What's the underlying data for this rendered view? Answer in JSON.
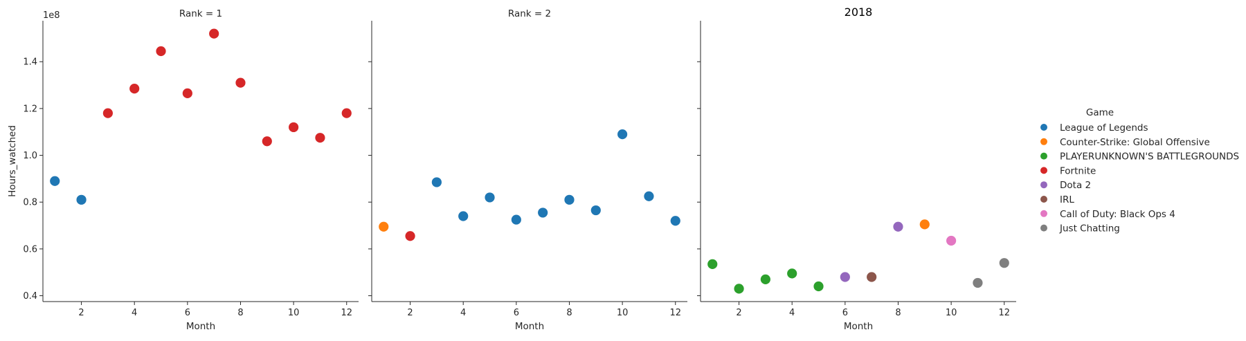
{
  "chart_data": {
    "type": "scatter",
    "title": "2018",
    "xlabel": "Month",
    "ylabel": "Hours_watched",
    "y_offset_label": "1e8",
    "xlim": [
      0.55,
      12.45
    ],
    "ylim": [
      0.375,
      1.575
    ],
    "xticks": [
      2,
      4,
      6,
      8,
      10,
      12
    ],
    "xtick_labels": [
      "2",
      "4",
      "6",
      "8",
      "10",
      "12"
    ],
    "yticks": [
      0.4,
      0.6,
      0.8,
      1.0,
      1.2,
      1.4
    ],
    "ytick_labels": [
      "0.4",
      "0.6",
      "0.8",
      "1.0",
      "1.2",
      "1.4"
    ],
    "legend": {
      "title": "Game",
      "placement": "right",
      "entries": [
        {
          "name": "League of Legends",
          "color": "#1f77b4"
        },
        {
          "name": "Counter-Strike: Global Offensive",
          "color": "#ff7f0e"
        },
        {
          "name": "PLAYERUNKNOWN'S BATTLEGROUNDS",
          "color": "#2ca02c"
        },
        {
          "name": "Fortnite",
          "color": "#d62728"
        },
        {
          "name": "Dota 2",
          "color": "#9467bd"
        },
        {
          "name": "IRL",
          "color": "#8c564b"
        },
        {
          "name": "Call of Duty: Black Ops 4",
          "color": "#e377c2"
        },
        {
          "name": "Just Chatting",
          "color": "#7f7f7f"
        }
      ]
    },
    "panels": [
      {
        "title": "Rank = 1",
        "points": [
          {
            "month": 1,
            "hours": 0.89,
            "game": "League of Legends"
          },
          {
            "month": 2,
            "hours": 0.81,
            "game": "League of Legends"
          },
          {
            "month": 3,
            "hours": 1.18,
            "game": "Fortnite"
          },
          {
            "month": 4,
            "hours": 1.285,
            "game": "Fortnite"
          },
          {
            "month": 5,
            "hours": 1.445,
            "game": "Fortnite"
          },
          {
            "month": 6,
            "hours": 1.265,
            "game": "Fortnite"
          },
          {
            "month": 7,
            "hours": 1.52,
            "game": "Fortnite"
          },
          {
            "month": 8,
            "hours": 1.31,
            "game": "Fortnite"
          },
          {
            "month": 9,
            "hours": 1.06,
            "game": "Fortnite"
          },
          {
            "month": 10,
            "hours": 1.12,
            "game": "Fortnite"
          },
          {
            "month": 11,
            "hours": 1.075,
            "game": "Fortnite"
          },
          {
            "month": 12,
            "hours": 1.18,
            "game": "Fortnite"
          }
        ]
      },
      {
        "title": "Rank = 2",
        "points": [
          {
            "month": 1,
            "hours": 0.695,
            "game": "Counter-Strike: Global Offensive"
          },
          {
            "month": 2,
            "hours": 0.655,
            "game": "Fortnite"
          },
          {
            "month": 3,
            "hours": 0.885,
            "game": "League of Legends"
          },
          {
            "month": 4,
            "hours": 0.74,
            "game": "League of Legends"
          },
          {
            "month": 5,
            "hours": 0.82,
            "game": "League of Legends"
          },
          {
            "month": 6,
            "hours": 0.725,
            "game": "League of Legends"
          },
          {
            "month": 7,
            "hours": 0.755,
            "game": "League of Legends"
          },
          {
            "month": 8,
            "hours": 0.81,
            "game": "League of Legends"
          },
          {
            "month": 9,
            "hours": 0.765,
            "game": "League of Legends"
          },
          {
            "month": 10,
            "hours": 1.09,
            "game": "League of Legends"
          },
          {
            "month": 11,
            "hours": 0.825,
            "game": "League of Legends"
          },
          {
            "month": 12,
            "hours": 0.72,
            "game": "League of Legends"
          }
        ]
      },
      {
        "title": "2018",
        "points": [
          {
            "month": 1,
            "hours": 0.535,
            "game": "PLAYERUNKNOWN'S BATTLEGROUNDS"
          },
          {
            "month": 2,
            "hours": 0.43,
            "game": "PLAYERUNKNOWN'S BATTLEGROUNDS"
          },
          {
            "month": 3,
            "hours": 0.47,
            "game": "PLAYERUNKNOWN'S BATTLEGROUNDS"
          },
          {
            "month": 4,
            "hours": 0.495,
            "game": "PLAYERUNKNOWN'S BATTLEGROUNDS"
          },
          {
            "month": 5,
            "hours": 0.44,
            "game": "PLAYERUNKNOWN'S BATTLEGROUNDS"
          },
          {
            "month": 6,
            "hours": 0.48,
            "game": "Dota 2"
          },
          {
            "month": 7,
            "hours": 0.48,
            "game": "IRL"
          },
          {
            "month": 8,
            "hours": 0.695,
            "game": "Dota 2"
          },
          {
            "month": 9,
            "hours": 0.705,
            "game": "Counter-Strike: Global Offensive"
          },
          {
            "month": 10,
            "hours": 0.635,
            "game": "Call of Duty: Black Ops 4"
          },
          {
            "month": 11,
            "hours": 0.455,
            "game": "Just Chatting"
          },
          {
            "month": 12,
            "hours": 0.54,
            "game": "Just Chatting"
          }
        ]
      }
    ]
  }
}
